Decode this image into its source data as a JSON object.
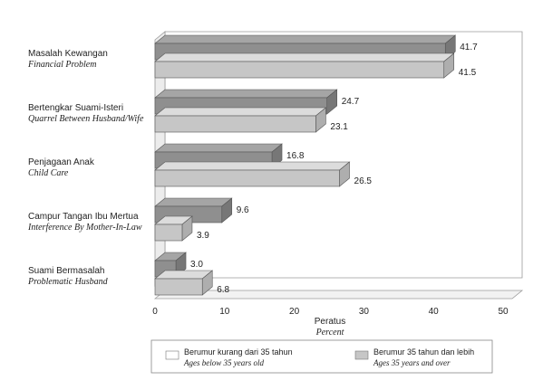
{
  "chart_data": {
    "type": "bar",
    "orientation": "horizontal",
    "categories": [
      {
        "label": "Masalah Kewangan",
        "sublabel": "Financial Problem"
      },
      {
        "label": "Bertengkar Suami-Isteri",
        "sublabel": "Quarrel Between Husband/Wife"
      },
      {
        "label": "Penjagaan Anak",
        "sublabel": "Child Care"
      },
      {
        "label": "Campur Tangan Ibu Mertua",
        "sublabel": "Interference  By Mother-In-Law"
      },
      {
        "label": "Suami Bermasalah",
        "sublabel": "Problematic Husband"
      }
    ],
    "series": [
      {
        "name": "Berumur kurang dari 35 tahun",
        "name_sub": "Ages below 35 years old",
        "values": [
          41.7,
          24.7,
          16.8,
          9.6,
          3.0
        ],
        "labels": [
          "41.7",
          "24.7",
          "16.8",
          "9.6",
          "3.0"
        ],
        "color": "#8f8f8f"
      },
      {
        "name": "Berumur 35 tahun dan lebih",
        "name_sub": "Ages 35 years and over",
        "values": [
          41.5,
          23.1,
          26.5,
          3.9,
          6.8
        ],
        "labels": [
          "41.5",
          "23.1",
          "26.5",
          "3.9",
          "6.8"
        ],
        "color": "#c6c6c6"
      }
    ],
    "xlabel": "Peratus",
    "xlabel_sub": "Percent",
    "xticks": [
      0,
      10,
      20,
      30,
      40,
      50
    ],
    "xlim": [
      0,
      50
    ],
    "grid": false,
    "legend_position": "bottom"
  }
}
